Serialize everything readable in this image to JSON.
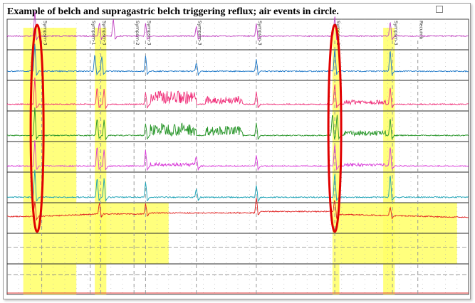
{
  "title": "Example of belch and supragastric belch triggering reflux; air events in circle.",
  "chart_data": {
    "type": "line",
    "title": "Example of belch and supragastric belch triggering reflux; air events in circle.",
    "x_range": [
      0,
      100
    ],
    "event_markers": [
      {
        "label": "Sympsm-3",
        "x": 7.5
      },
      {
        "label": "Sympsm-1",
        "x": 18.0
      },
      {
        "label": "Sympsm-3",
        "x": 20.3
      },
      {
        "label": "Sympsm-2",
        "x": 27.5
      },
      {
        "label": "Sympsm-3",
        "x": 30.0
      },
      {
        "label": "Sympsm-3",
        "x": 41.0
      },
      {
        "label": "Sympsm-3",
        "x": 54.0
      },
      {
        "label": "Sympsm-3",
        "x": 71.0
      },
      {
        "label": "Sympsm-3",
        "x": 83.5
      },
      {
        "label": "Recumb",
        "x": 89.0
      }
    ],
    "highlight_regions": [
      {
        "x": [
          3.5,
          15.0
        ],
        "channels": [
          1,
          9
        ]
      },
      {
        "x": [
          15.0,
          35.0
        ],
        "channels": [
          7,
          8
        ]
      },
      {
        "x": [
          19.0,
          21.5
        ],
        "channels": [
          1,
          9
        ]
      },
      {
        "x": [
          70.5,
          72.0
        ],
        "channels": [
          1,
          9
        ]
      },
      {
        "x": [
          72.0,
          97.5
        ],
        "channels": [
          7,
          8
        ]
      },
      {
        "x": [
          81.5,
          84.0
        ],
        "channels": [
          1,
          9
        ]
      }
    ],
    "circles": [
      {
        "x": 6.5,
        "channels": [
          1,
          7
        ]
      },
      {
        "x": 71.0,
        "channels": [
          1,
          7
        ]
      }
    ],
    "series": [
      {
        "channel": 1,
        "color": "#c040c0",
        "baseline": 0.55,
        "events": [
          {
            "x": 6,
            "amp": 0.8
          },
          {
            "x": 20,
            "amp": 0.5
          },
          {
            "x": 23,
            "amp": 0.6
          },
          {
            "x": 30,
            "amp": 0.4
          },
          {
            "x": 41,
            "amp": 0.35
          },
          {
            "x": 54,
            "amp": 0.4
          },
          {
            "x": 71,
            "amp": 0.7
          },
          {
            "x": 83,
            "amp": 0.5
          }
        ],
        "noise_regions": []
      },
      {
        "channel": 2,
        "color": "#1e78c8",
        "baseline": 0.7,
        "events": [
          {
            "x": 6,
            "amp": 0.9
          },
          {
            "x": 19,
            "amp": 0.6
          },
          {
            "x": 20.5,
            "amp": 0.5
          },
          {
            "x": 30,
            "amp": 0.5
          },
          {
            "x": 41,
            "amp": 0.3
          },
          {
            "x": 54,
            "amp": 0.4
          },
          {
            "x": 71,
            "amp": 0.8
          },
          {
            "x": 83,
            "amp": 0.75
          }
        ],
        "noise_regions": []
      },
      {
        "channel": 3,
        "color": "#f0307a",
        "baseline": 0.78,
        "events": [
          {
            "x": 6,
            "amp": 0.85
          },
          {
            "x": 19.5,
            "amp": 0.6
          },
          {
            "x": 21,
            "amp": 0.5
          },
          {
            "x": 30,
            "amp": 0.4
          },
          {
            "x": 54,
            "amp": 0.4
          },
          {
            "x": 71,
            "amp": 0.75
          },
          {
            "x": 83,
            "amp": 0.6
          }
        ],
        "noise_regions": [
          {
            "x": [
              31,
              41
            ],
            "amp": 0.45
          },
          {
            "x": [
              43,
              51
            ],
            "amp": 0.25
          },
          {
            "x": [
              73,
              82
            ],
            "amp": 0.15
          }
        ]
      },
      {
        "channel": 4,
        "color": "#28962a",
        "baseline": 0.8,
        "events": [
          {
            "x": 6,
            "amp": 0.9
          },
          {
            "x": 19.5,
            "amp": 0.6
          },
          {
            "x": 21,
            "amp": 0.5
          },
          {
            "x": 30,
            "amp": 0.4
          },
          {
            "x": 54,
            "amp": 0.4
          },
          {
            "x": 70.5,
            "amp": 0.8
          },
          {
            "x": 71.5,
            "amp": 0.7
          },
          {
            "x": 83,
            "amp": 0.6
          }
        ],
        "noise_regions": [
          {
            "x": [
              31,
              41
            ],
            "amp": 0.4
          },
          {
            "x": [
              43,
              51
            ],
            "amp": 0.3
          },
          {
            "x": [
              73,
              82
            ],
            "amp": 0.15
          }
        ]
      },
      {
        "channel": 5,
        "color": "#d838d8",
        "baseline": 0.8,
        "events": [
          {
            "x": 6,
            "amp": 0.85
          },
          {
            "x": 19.5,
            "amp": 0.7
          },
          {
            "x": 21,
            "amp": 0.55
          },
          {
            "x": 30,
            "amp": 0.5
          },
          {
            "x": 41,
            "amp": 0.3
          },
          {
            "x": 54,
            "amp": 0.35
          },
          {
            "x": 71,
            "amp": 0.8
          },
          {
            "x": 83,
            "amp": 0.7
          }
        ],
        "noise_regions": [
          {
            "x": [
              31,
              41
            ],
            "amp": 0.1
          },
          {
            "x": [
              73,
              82
            ],
            "amp": 0.08
          }
        ]
      },
      {
        "channel": 6,
        "color": "#18a0b4",
        "baseline": 0.82,
        "events": [
          {
            "x": 6,
            "amp": 0.9
          },
          {
            "x": 19.5,
            "amp": 0.7
          },
          {
            "x": 21,
            "amp": 0.6
          },
          {
            "x": 30,
            "amp": 0.5
          },
          {
            "x": 41,
            "amp": 0.3
          },
          {
            "x": 54,
            "amp": 0.4
          },
          {
            "x": 71,
            "amp": 0.85
          },
          {
            "x": 83,
            "amp": 0.8
          }
        ],
        "noise_regions": []
      },
      {
        "channel": 7,
        "color": "#e02020",
        "baseline": 0.45,
        "events": [
          {
            "x": 6,
            "amp": 0.5
          },
          {
            "x": 20,
            "amp": 0.4
          },
          {
            "x": 30,
            "amp": 0.3
          },
          {
            "x": 54,
            "amp": 0.5
          },
          {
            "x": 71,
            "amp": 0.45
          },
          {
            "x": 83,
            "amp": 0.3
          }
        ],
        "noise_regions": [],
        "drift": true
      }
    ]
  }
}
